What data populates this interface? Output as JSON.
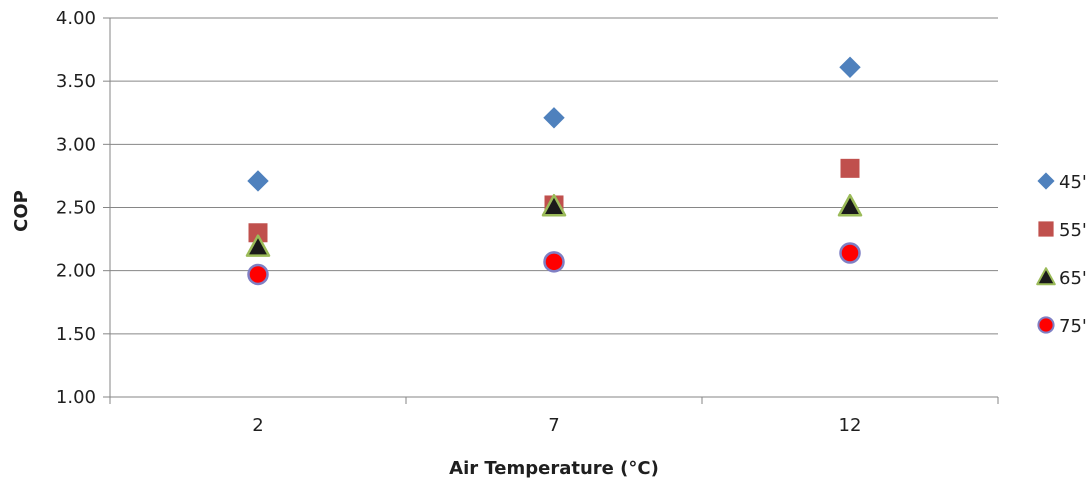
{
  "chart_data": {
    "type": "scatter",
    "title": "",
    "xlabel": "Air Temperature (°C)",
    "ylabel": "COP",
    "categories": [
      "2",
      "7",
      "12"
    ],
    "ylim": [
      1.0,
      4.0
    ],
    "yticks": [
      "1.00",
      "1.50",
      "2.00",
      "2.50",
      "3.00",
      "3.50",
      "4.00"
    ],
    "grid": "horizontal",
    "legend_position": "right",
    "series": [
      {
        "name": "45'",
        "marker": "diamond",
        "color": "#4f81bd",
        "stroke": "#4f81bd",
        "values": [
          2.71,
          3.21,
          3.61
        ]
      },
      {
        "name": "55'",
        "marker": "square",
        "color": "#c0504d",
        "stroke": "#c0504d",
        "values": [
          2.3,
          2.52,
          2.81
        ]
      },
      {
        "name": "65'",
        "marker": "triangle",
        "color": "#1a1a1a",
        "stroke": "#9bbb59",
        "values": [
          2.19,
          2.51,
          2.51
        ]
      },
      {
        "name": "75'",
        "marker": "circle",
        "color": "#ff0000",
        "stroke": "#7f7fc4",
        "values": [
          1.97,
          2.07,
          2.14
        ]
      }
    ]
  }
}
